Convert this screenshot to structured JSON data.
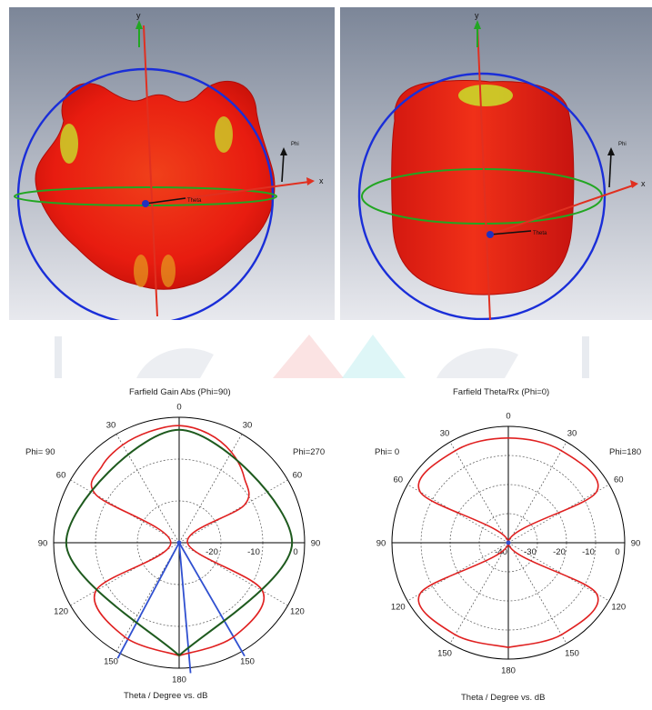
{
  "panels_3d": [
    {
      "axes": {
        "x": "x",
        "y": "y"
      },
      "labels": {
        "phi": "Phi",
        "theta": "Theta"
      },
      "colors": {
        "background_top": "#7c8698",
        "background_bottom": "#e8e9ee",
        "surface": "#ee1c10",
        "highlight": "#c8e02a",
        "sphere": "#1a2ed8",
        "equator": "#22a622"
      }
    },
    {
      "axes": {
        "x": "x",
        "y": "y"
      },
      "labels": {
        "phi": "Phi",
        "theta": "Theta"
      },
      "colors": {
        "background_top": "#7c8698",
        "background_bottom": "#e8e9ee",
        "surface": "#ee1c10",
        "highlight": "#c8e02a",
        "sphere": "#1a2ed8",
        "equator": "#22a622"
      }
    }
  ],
  "chart_data": [
    {
      "type": "polar",
      "title": "Farfield Gain Abs (Phi=90)",
      "xlabel": "Theta / Degree vs. dB",
      "left_label": "Phi= 90",
      "right_label": "Phi=270",
      "angle_ticks": [
        "0",
        "30",
        "60",
        "90",
        "120",
        "150",
        "180",
        "150",
        "120",
        "90",
        "60",
        "30"
      ],
      "radial_ticks": [
        "-20",
        "-10",
        "0"
      ],
      "radial_range_db": [
        -30,
        0
      ],
      "grid": true,
      "series": [
        {
          "color": "#e02020",
          "theta_deg": [
            -180,
            -150,
            -120,
            -90,
            -60,
            -45,
            -30,
            -15,
            0,
            15,
            30,
            45,
            60,
            90,
            120,
            150,
            180
          ],
          "values_db": [
            -3,
            -4,
            -7,
            -28,
            -7,
            -4,
            -3,
            -2.5,
            -2,
            -3,
            -5,
            -8,
            -12,
            -28,
            -7,
            -4,
            -3
          ]
        },
        {
          "color": "#1e5a1e",
          "theta_deg": [
            -180,
            -90,
            0,
            90,
            180
          ],
          "values_db": [
            -3,
            -3,
            -3,
            -3,
            -3
          ]
        }
      ],
      "beam_lines_deg": [
        150,
        175,
        208
      ],
      "colors": {
        "beam": "#3050d0",
        "axis": "#000000",
        "grid": "#555555"
      }
    },
    {
      "type": "polar",
      "title": "Farfield Theta/Rx (Phi=0)",
      "xlabel": "Theta / Degree vs. dB",
      "left_label": "Phi= 0",
      "right_label": "Phi=180",
      "angle_ticks": [
        "0",
        "30",
        "60",
        "90",
        "120",
        "150",
        "180",
        "150",
        "120",
        "90",
        "60",
        "30"
      ],
      "radial_ticks": [
        "-40",
        "-30",
        "-20",
        "-10",
        "0"
      ],
      "radial_range_db": [
        -40,
        0
      ],
      "grid": true,
      "series": [
        {
          "color": "#e02020",
          "theta_deg": [
            -180,
            -150,
            -120,
            -90,
            -60,
            -30,
            0,
            30,
            60,
            90,
            120,
            150,
            180
          ],
          "values_db": [
            -4,
            -3.5,
            -5,
            -40,
            -5,
            -3.5,
            -4,
            -3.5,
            -5,
            -40,
            -5,
            -3.5,
            -4
          ]
        }
      ],
      "colors": {
        "axis": "#000000",
        "grid": "#555555"
      }
    }
  ]
}
